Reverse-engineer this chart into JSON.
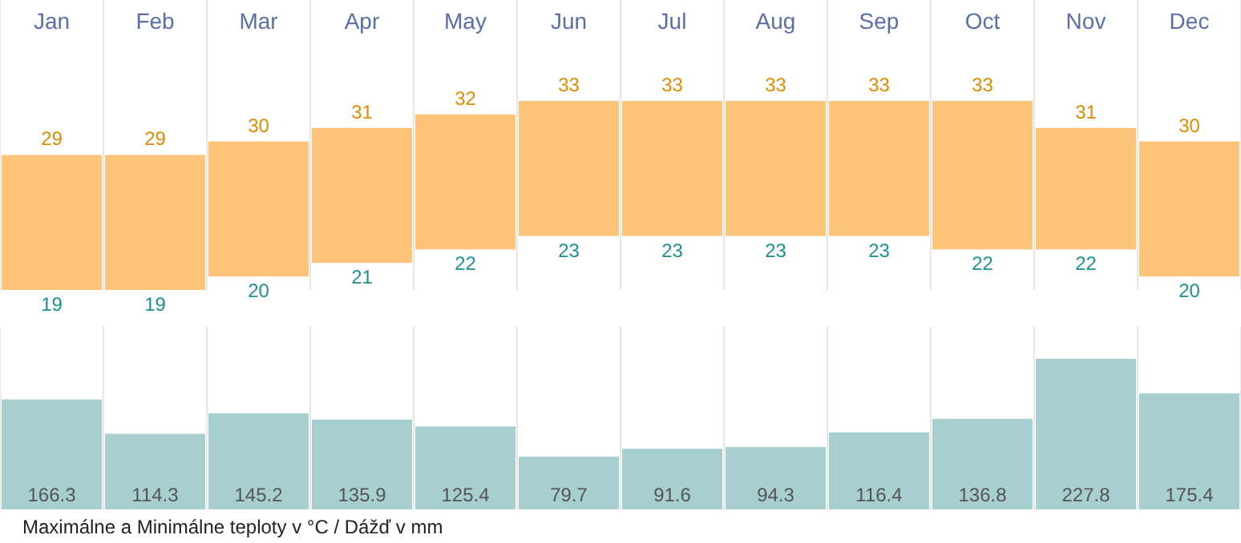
{
  "chart_data": [
    {
      "type": "candlestick",
      "categories": [
        "Jan",
        "Feb",
        "Mar",
        "Apr",
        "May",
        "Jun",
        "Jul",
        "Aug",
        "Sep",
        "Oct",
        "Nov",
        "Dec"
      ],
      "color": "#fdc47a",
      "ohlc": [
        [
          19,
          29,
          19,
          29
        ],
        [
          19,
          29,
          19,
          29
        ],
        [
          20,
          30,
          20,
          30
        ],
        [
          21,
          31,
          21,
          31
        ],
        [
          22,
          32,
          22,
          32
        ],
        [
          23,
          33,
          23,
          33
        ],
        [
          23,
          33,
          23,
          33
        ],
        [
          23,
          33,
          23,
          33
        ],
        [
          23,
          33,
          23,
          33
        ],
        [
          22,
          33,
          22,
          33
        ],
        [
          22,
          31,
          22,
          31
        ],
        [
          20,
          30,
          20,
          30
        ]
      ],
      "grid": "x",
      "tick_labels": "x",
      "annotations": [
        {
          "text": "29",
          "x": "Jan",
          "y": 29
        },
        {
          "text": "29",
          "x": "Feb",
          "y": 29
        },
        {
          "text": "30",
          "x": "Mar",
          "y": 30
        },
        {
          "text": "31",
          "x": "Apr",
          "y": 31
        },
        {
          "text": "32",
          "x": "May",
          "y": 32
        },
        {
          "text": "33",
          "x": "Jun",
          "y": 33
        },
        {
          "text": "33",
          "x": "Jul",
          "y": 33
        },
        {
          "text": "33",
          "x": "Aug",
          "y": 33
        },
        {
          "text": "33",
          "x": "Sep",
          "y": 33
        },
        {
          "text": "33",
          "x": "Oct",
          "y": 33
        },
        {
          "text": "31",
          "x": "Nov",
          "y": 31
        },
        {
          "text": "30",
          "x": "Dec",
          "y": 30
        },
        {
          "text": "19",
          "x": "Jan",
          "y": 19
        },
        {
          "text": "19",
          "x": "Feb",
          "y": 19
        },
        {
          "text": "20",
          "x": "Mar",
          "y": 20
        },
        {
          "text": "21",
          "x": "Apr",
          "y": 21
        },
        {
          "text": "22",
          "x": "May",
          "y": 22
        },
        {
          "text": "23",
          "x": "Jun",
          "y": 23
        },
        {
          "text": "23",
          "x": "Jul",
          "y": 23
        },
        {
          "text": "23",
          "x": "Aug",
          "y": 23
        },
        {
          "text": "23",
          "x": "Sep",
          "y": 23
        },
        {
          "text": "22",
          "x": "Oct",
          "y": 22
        },
        {
          "text": "22",
          "x": "Nov",
          "y": 22
        },
        {
          "text": "20",
          "x": "Dec",
          "y": 20
        }
      ]
    },
    {
      "type": "bar",
      "categories": [
        null,
        null,
        null,
        null,
        null,
        null,
        null,
        null,
        null,
        null,
        null,
        null
      ],
      "color": "#a8cfcf",
      "values": [
        166.3,
        114.3,
        145.2,
        135.9,
        125.4,
        79.7,
        91.6,
        94.3,
        116.4,
        136.8,
        227.8,
        175.4
      ],
      "ylim": [
        0,
        227.8
      ],
      "data_labels": true,
      "grid": "x",
      "tick_labels": false,
      "annotations": [
        "Maximálne a Minimálne teploty v °C / Dážď v mm"
      ]
    }
  ]
}
